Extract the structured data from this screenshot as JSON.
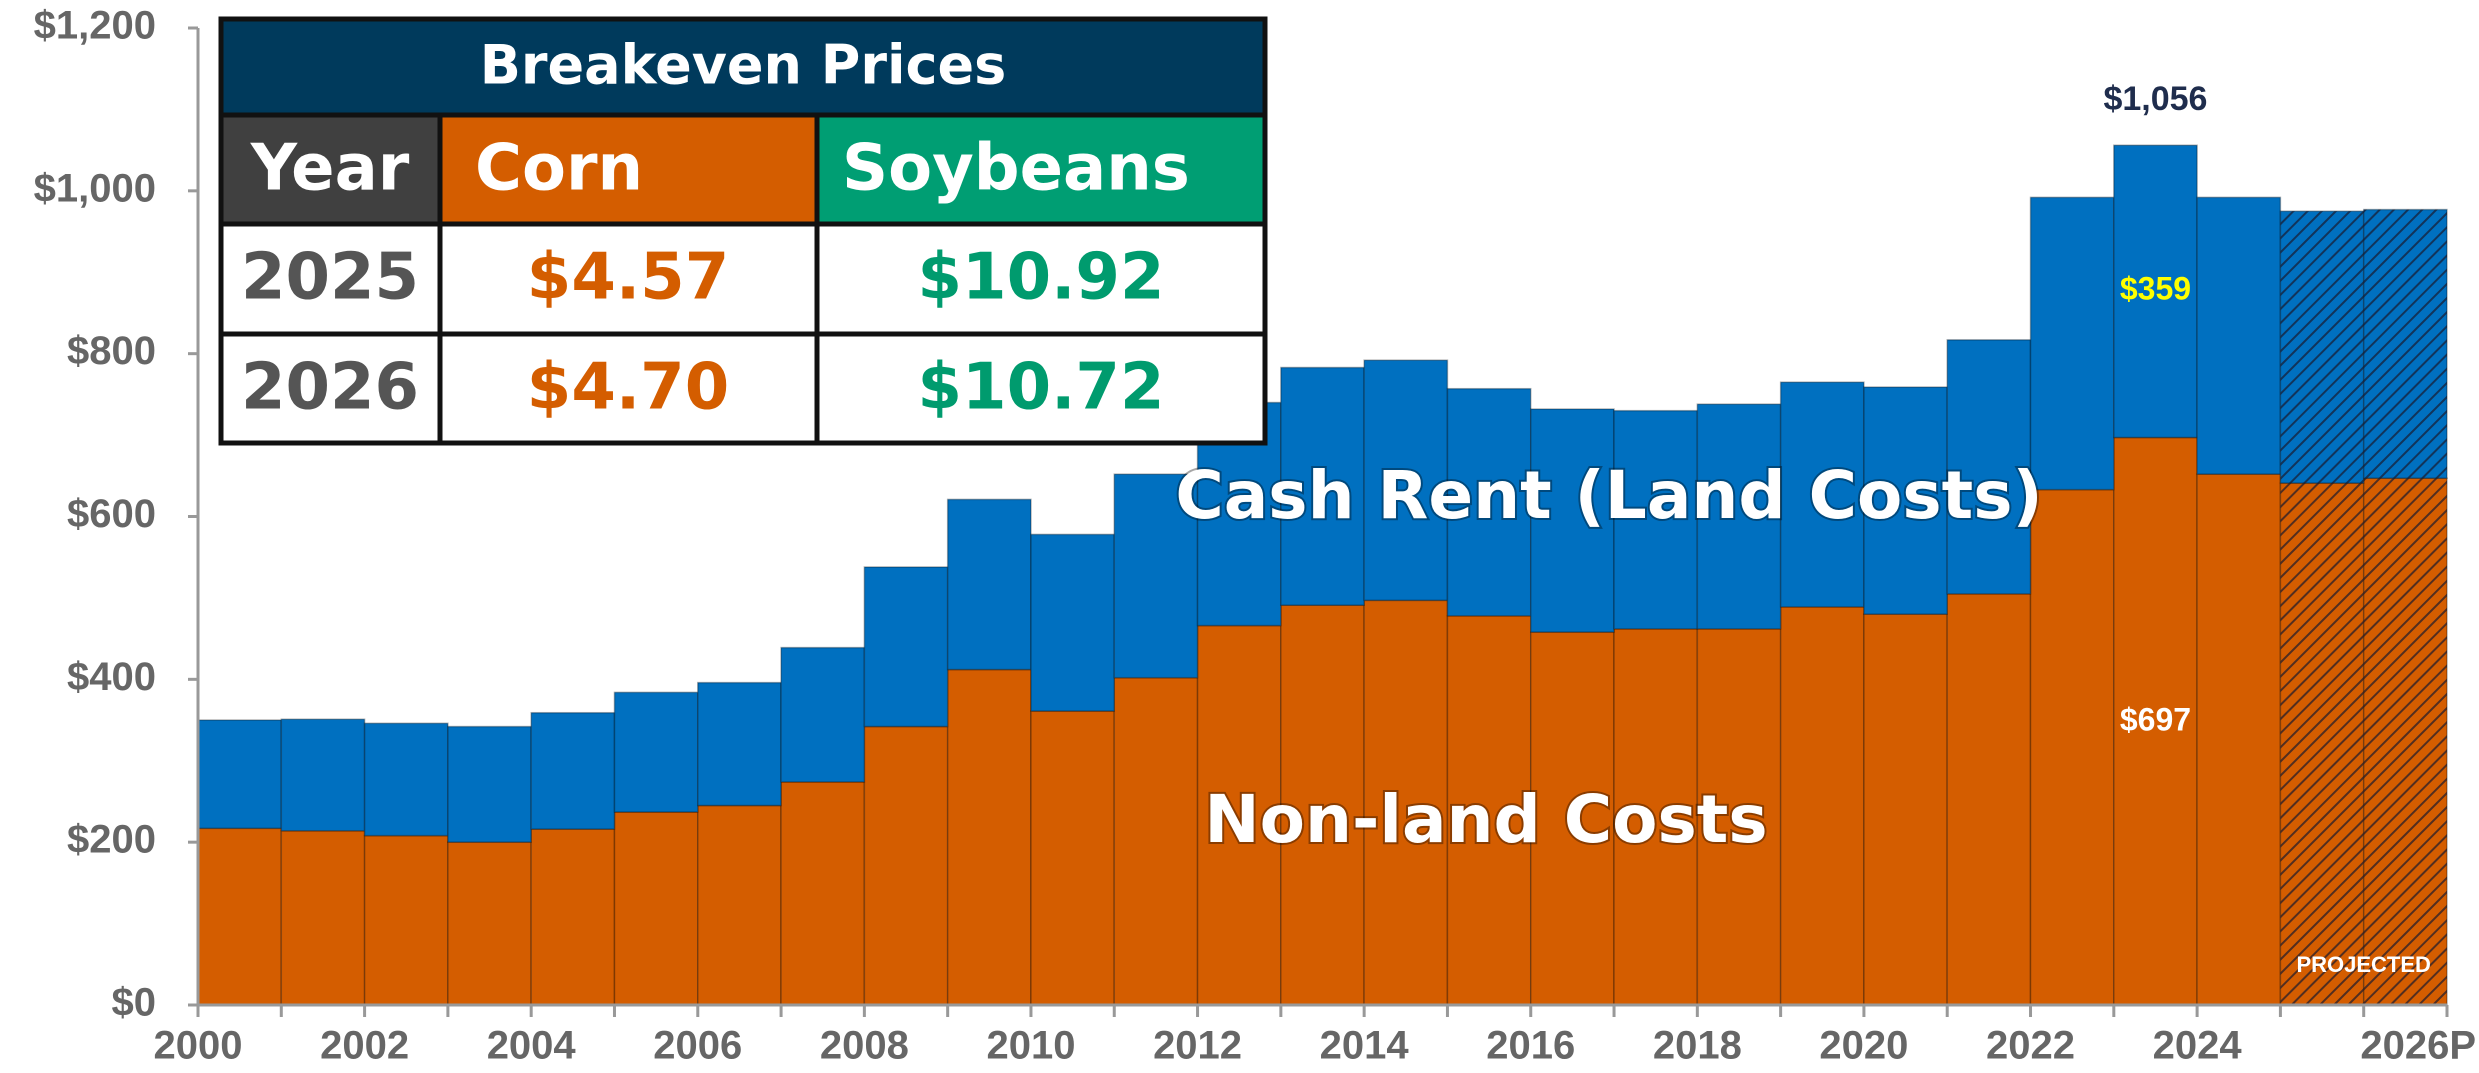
{
  "chart_data": {
    "type": "stacked_bar",
    "categories": [
      "2000",
      null,
      "2002",
      null,
      "2004",
      null,
      "2006",
      null,
      "2008",
      null,
      "2010",
      null,
      "2012",
      null,
      "2014",
      null,
      "2016",
      null,
      "2018",
      null,
      "2020",
      null,
      "2022",
      null,
      "2024",
      null,
      "2026P"
    ],
    "series": [
      {
        "name": "Non-land Costs",
        "color": "#d45d00",
        "values": [
          217,
          214,
          208,
          200,
          216,
          237,
          245,
          274,
          342,
          412,
          361,
          402,
          466,
          491,
          497,
          478,
          458,
          462,
          462,
          489,
          480,
          505,
          633,
          697,
          652,
          641,
          647
        ],
        "value_labels": [
          null,
          null,
          null,
          null,
          null,
          null,
          null,
          null,
          null,
          null,
          null,
          null,
          null,
          null,
          null,
          null,
          null,
          null,
          null,
          null,
          null,
          null,
          null,
          "$697",
          null,
          null,
          null
        ]
      },
      {
        "name": "Cash Rent (Land Costs)",
        "color": "#0070c0",
        "values": [
          133,
          137,
          138,
          142,
          143,
          147,
          151,
          165,
          196,
          209,
          217,
          250,
          274,
          292,
          295,
          279,
          274,
          268,
          276,
          276,
          279,
          312,
          359,
          359,
          340,
          334,
          330
        ],
        "value_labels": [
          null,
          null,
          null,
          null,
          null,
          null,
          null,
          null,
          null,
          null,
          null,
          null,
          null,
          null,
          null,
          null,
          null,
          null,
          null,
          null,
          null,
          null,
          null,
          "$359",
          null,
          null,
          null
        ]
      }
    ],
    "projected": [
      false,
      false,
      false,
      false,
      false,
      false,
      false,
      false,
      false,
      false,
      false,
      false,
      false,
      false,
      false,
      false,
      false,
      false,
      false,
      false,
      false,
      false,
      false,
      false,
      false,
      true,
      true
    ],
    "annotations": [
      {
        "text": "$1,056",
        "value": 1056
      },
      {
        "text": "PROJECTED"
      }
    ],
    "ylim": [
      0,
      1200
    ],
    "yticks": [
      {
        "value": 0,
        "label": "$0"
      },
      {
        "value": 200,
        "label": "$200"
      },
      {
        "value": 400,
        "label": "$400"
      },
      {
        "value": 600,
        "label": "$600"
      },
      {
        "value": 800,
        "label": "$800"
      },
      {
        "value": 1000,
        "label": "$1,000"
      },
      {
        "value": 1200,
        "label": "$1,200"
      }
    ],
    "grid": false
  },
  "table": {
    "title": "Breakeven Prices",
    "header": [
      "Year",
      "Corn",
      "Soybeans"
    ],
    "rows": [
      [
        "2025",
        "$4.57",
        "$10.92"
      ],
      [
        "2026",
        "$4.70",
        "$10.72"
      ]
    ]
  }
}
